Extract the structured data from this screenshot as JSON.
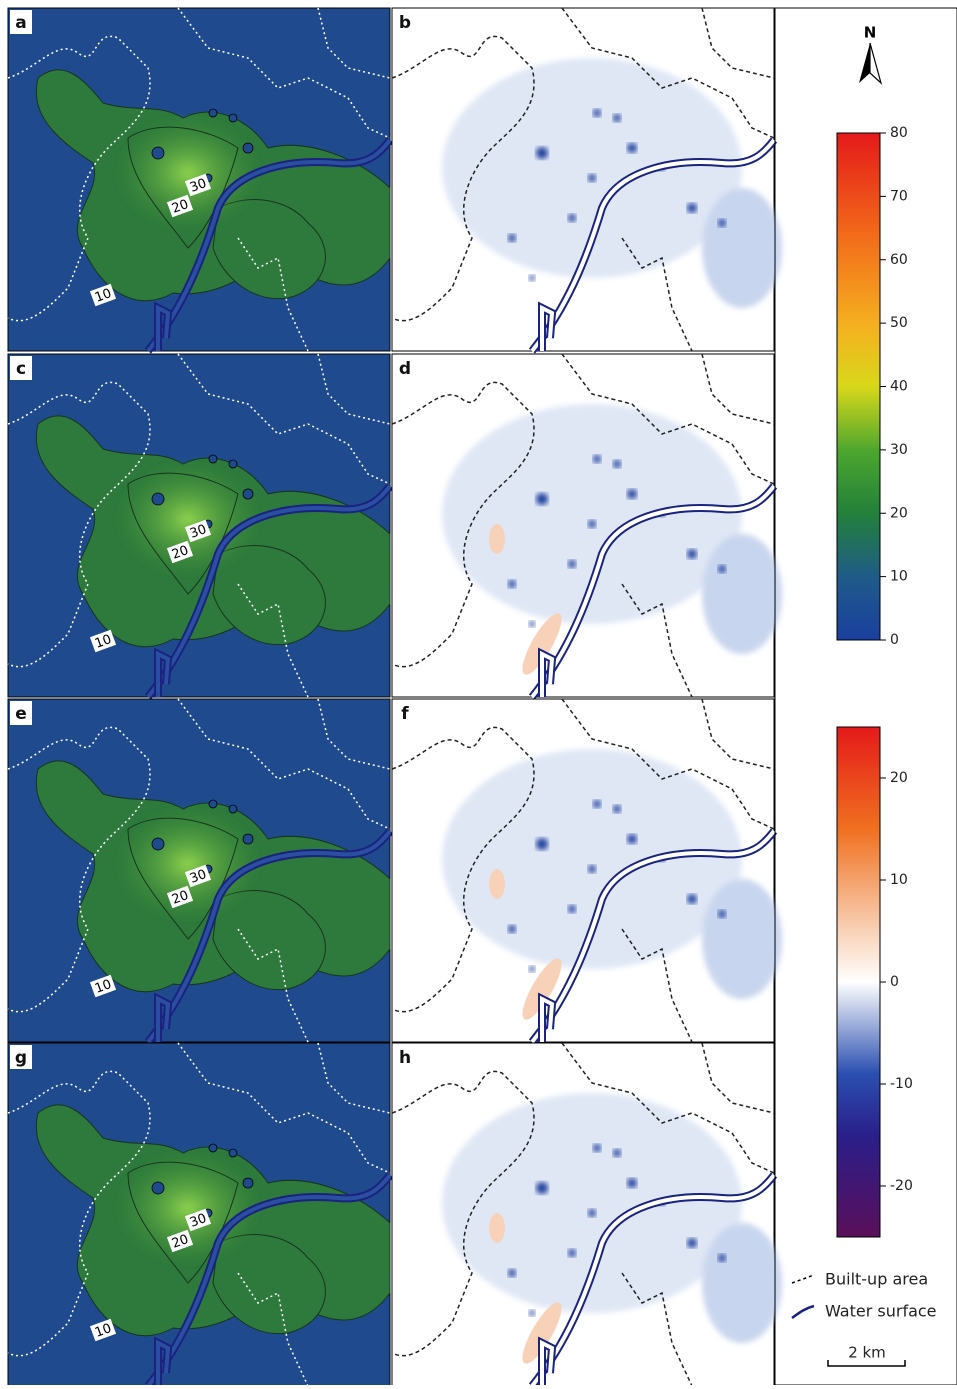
{
  "panels": [
    {
      "label": "a",
      "contour_labels": [
        30,
        20,
        10
      ]
    },
    {
      "label": "b"
    },
    {
      "label": "c",
      "contour_labels": [
        30,
        20,
        10
      ]
    },
    {
      "label": "d"
    },
    {
      "label": "e",
      "contour_labels": [
        30,
        20,
        10
      ]
    },
    {
      "label": "f"
    },
    {
      "label": "g",
      "contour_labels": [
        30,
        20,
        10
      ]
    },
    {
      "label": "h"
    }
  ],
  "north": "N",
  "colorbar_absolute": {
    "range": [
      0,
      80
    ],
    "ticks": [
      0,
      10,
      20,
      30,
      40,
      50,
      60,
      70,
      80
    ]
  },
  "colorbar_difference": {
    "range": [
      -25,
      25
    ],
    "ticks": [
      -20,
      -10,
      0,
      10,
      20
    ]
  },
  "legend": {
    "built_up": "Built-up area",
    "water": "Water surface"
  },
  "scale_bar": "2 km"
}
